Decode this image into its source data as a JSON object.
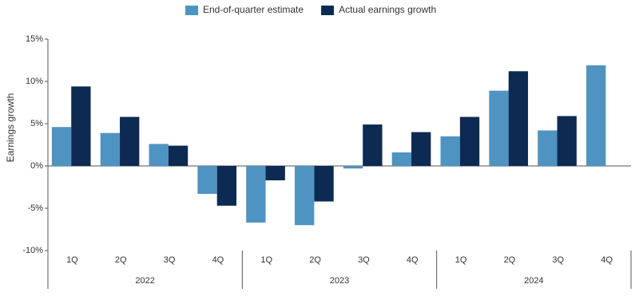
{
  "chart_data": {
    "type": "bar",
    "y_label": "Earnings growth",
    "categories": [
      "1Q",
      "2Q",
      "3Q",
      "4Q",
      "1Q",
      "2Q",
      "3Q",
      "4Q",
      "1Q",
      "2Q",
      "3Q",
      "4Q"
    ],
    "category_groups": [
      "2022",
      "2023",
      "2024"
    ],
    "series": [
      {
        "name": "End-of-quarter estimate",
        "color": "#4f93c2",
        "values": [
          4.6,
          3.9,
          2.6,
          -3.3,
          -6.7,
          -7.0,
          -0.3,
          1.6,
          3.5,
          8.9,
          4.2,
          11.9
        ]
      },
      {
        "name": "Actual earnings growth",
        "color": "#0d2b52",
        "values": [
          9.4,
          5.8,
          2.4,
          -4.7,
          -1.7,
          -4.2,
          4.9,
          4.0,
          5.8,
          11.2,
          5.9,
          null
        ]
      }
    ],
    "ylim": [
      -10,
      15
    ],
    "yticks": [
      {
        "value": 15,
        "label": "15%"
      },
      {
        "value": 10,
        "label": "10%"
      },
      {
        "value": 5,
        "label": "5%"
      },
      {
        "value": 0,
        "label": "0%"
      },
      {
        "value": -5,
        "label": "-5%"
      },
      {
        "value": -10,
        "label": "-10%"
      }
    ],
    "legend": "top"
  }
}
